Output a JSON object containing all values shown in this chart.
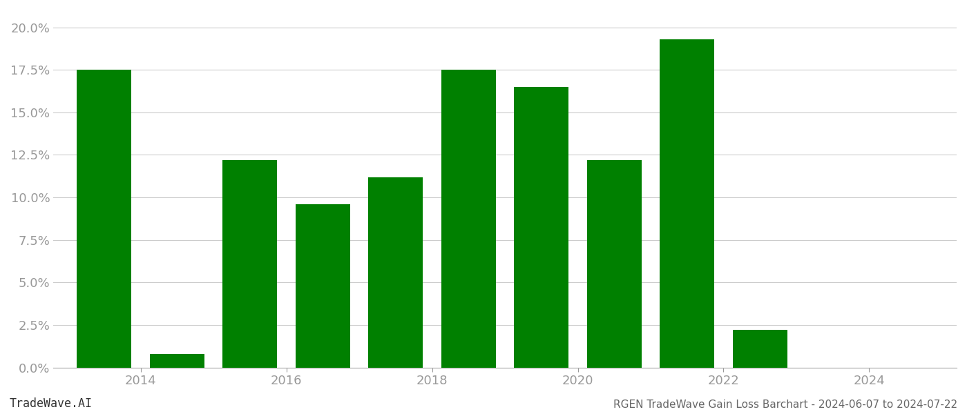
{
  "years": [
    2013,
    2014,
    2015,
    2016,
    2017,
    2018,
    2019,
    2020,
    2021,
    2022,
    2023
  ],
  "values": [
    0.175,
    0.008,
    0.122,
    0.096,
    0.112,
    0.175,
    0.165,
    0.122,
    0.193,
    0.022,
    0.0
  ],
  "bar_color": "#008000",
  "background_color": "#ffffff",
  "grid_color": "#cccccc",
  "ylabel_color": "#999999",
  "xlabel_color": "#999999",
  "title": "RGEN TradeWave Gain Loss Barchart - 2024-06-07 to 2024-07-22",
  "watermark": "TradeWave.AI",
  "ylim_min": 0.0,
  "ylim_max": 0.21,
  "yticks": [
    0.0,
    0.025,
    0.05,
    0.075,
    0.1,
    0.125,
    0.15,
    0.175,
    0.2
  ],
  "xtick_positions": [
    2013.5,
    2015.5,
    2017.5,
    2019.5,
    2021.5,
    2023.5
  ],
  "xtick_labels": [
    "2014",
    "2016",
    "2018",
    "2020",
    "2022",
    "2024"
  ]
}
